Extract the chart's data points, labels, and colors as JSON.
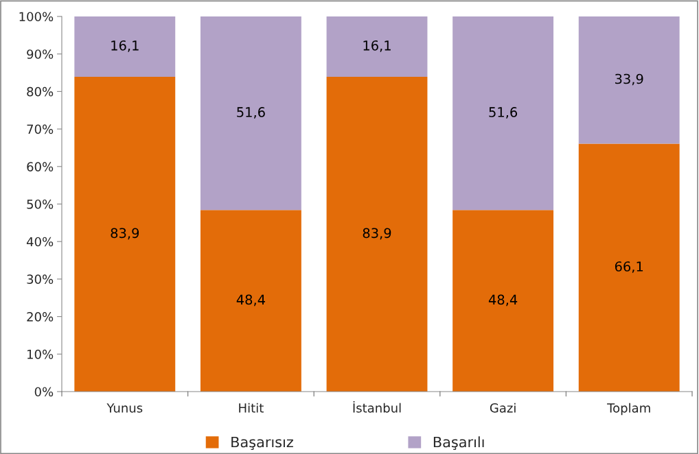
{
  "chart_data": {
    "type": "bar",
    "stacked": true,
    "categories": [
      "Yunus",
      "Hitit",
      "İstanbul",
      "Gazi",
      "Toplam"
    ],
    "series": [
      {
        "name": "Başarısız",
        "color": "#e36c09",
        "values": [
          83.9,
          48.4,
          83.9,
          48.4,
          66.1
        ],
        "value_labels": [
          "83,9",
          "48,4",
          "83,9",
          "48,4",
          "66,1"
        ]
      },
      {
        "name": "Başarılı",
        "color": "#b2a2c7",
        "values": [
          16.1,
          51.6,
          16.1,
          51.6,
          33.9
        ],
        "value_labels": [
          "16,1",
          "51,6",
          "16,1",
          "51,6",
          "33,9"
        ]
      }
    ],
    "ylim": [
      0,
      100
    ],
    "yticks": [
      {
        "value": 0,
        "label": "0%"
      },
      {
        "value": 10,
        "label": "10%"
      },
      {
        "value": 20,
        "label": "20%"
      },
      {
        "value": 30,
        "label": "30%"
      },
      {
        "value": 40,
        "label": "40%"
      },
      {
        "value": 50,
        "label": "50%"
      },
      {
        "value": 60,
        "label": "60%"
      },
      {
        "value": 70,
        "label": "70%"
      },
      {
        "value": 80,
        "label": "80%"
      },
      {
        "value": 90,
        "label": "90%"
      },
      {
        "value": 100,
        "label": "100%"
      }
    ],
    "grid": false,
    "legend": "bottom"
  }
}
